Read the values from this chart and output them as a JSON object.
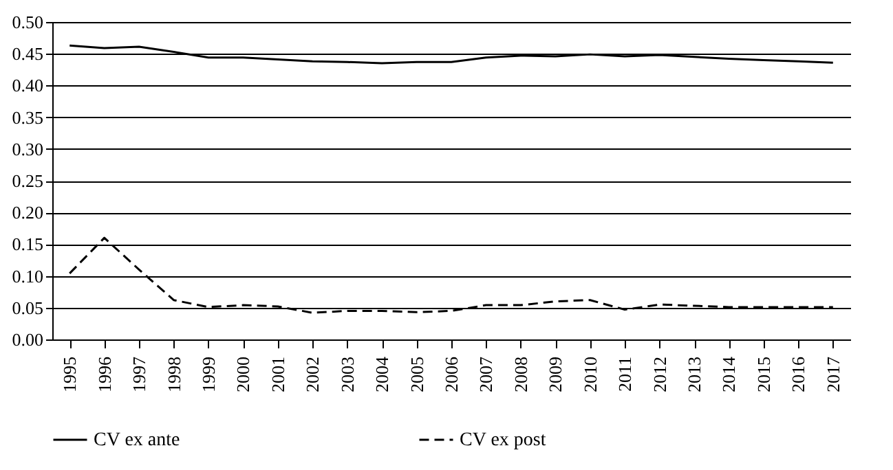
{
  "chart_data": {
    "type": "line",
    "categories": [
      "1995",
      "1996",
      "1997",
      "1998",
      "1999",
      "2000",
      "2001",
      "2002",
      "2003",
      "2004",
      "2005",
      "2006",
      "2007",
      "2008",
      "2009",
      "2010",
      "2011",
      "2012",
      "2013",
      "2014",
      "2015",
      "2016",
      "2017"
    ],
    "series": [
      {
        "name": "CV ex ante",
        "color": "#000000",
        "line_style": "solid",
        "values": [
          0.463,
          0.459,
          0.461,
          0.453,
          0.444,
          0.444,
          0.441,
          0.438,
          0.437,
          0.435,
          0.437,
          0.437,
          0.444,
          0.447,
          0.446,
          0.449,
          0.446,
          0.448,
          0.445,
          0.442,
          0.44,
          0.438,
          0.436
        ]
      },
      {
        "name": "CV ex post",
        "color": "#000000",
        "line_style": "dashed",
        "values": [
          0.104,
          0.16,
          0.11,
          0.062,
          0.051,
          0.054,
          0.052,
          0.042,
          0.045,
          0.045,
          0.043,
          0.045,
          0.054,
          0.054,
          0.06,
          0.062,
          0.047,
          0.055,
          0.053,
          0.051,
          0.051,
          0.051,
          0.051
        ]
      }
    ],
    "ylim": [
      0,
      0.5
    ],
    "yticks": [
      {
        "value": 0,
        "label": "0.00"
      },
      {
        "value": 0.05,
        "label": "0.05"
      },
      {
        "value": 0.1,
        "label": "0.10"
      },
      {
        "value": 0.15,
        "label": "0.15"
      },
      {
        "value": 0.2,
        "label": "0.20"
      },
      {
        "value": 0.25,
        "label": "0.25"
      },
      {
        "value": 0.3,
        "label": "0.30"
      },
      {
        "value": 0.35,
        "label": "0.35"
      },
      {
        "value": 0.4,
        "label": "0.40"
      },
      {
        "value": 0.45,
        "label": "0.45"
      },
      {
        "value": 0.5,
        "label": "0.50"
      }
    ],
    "grid": "y",
    "legend": "bottom"
  }
}
